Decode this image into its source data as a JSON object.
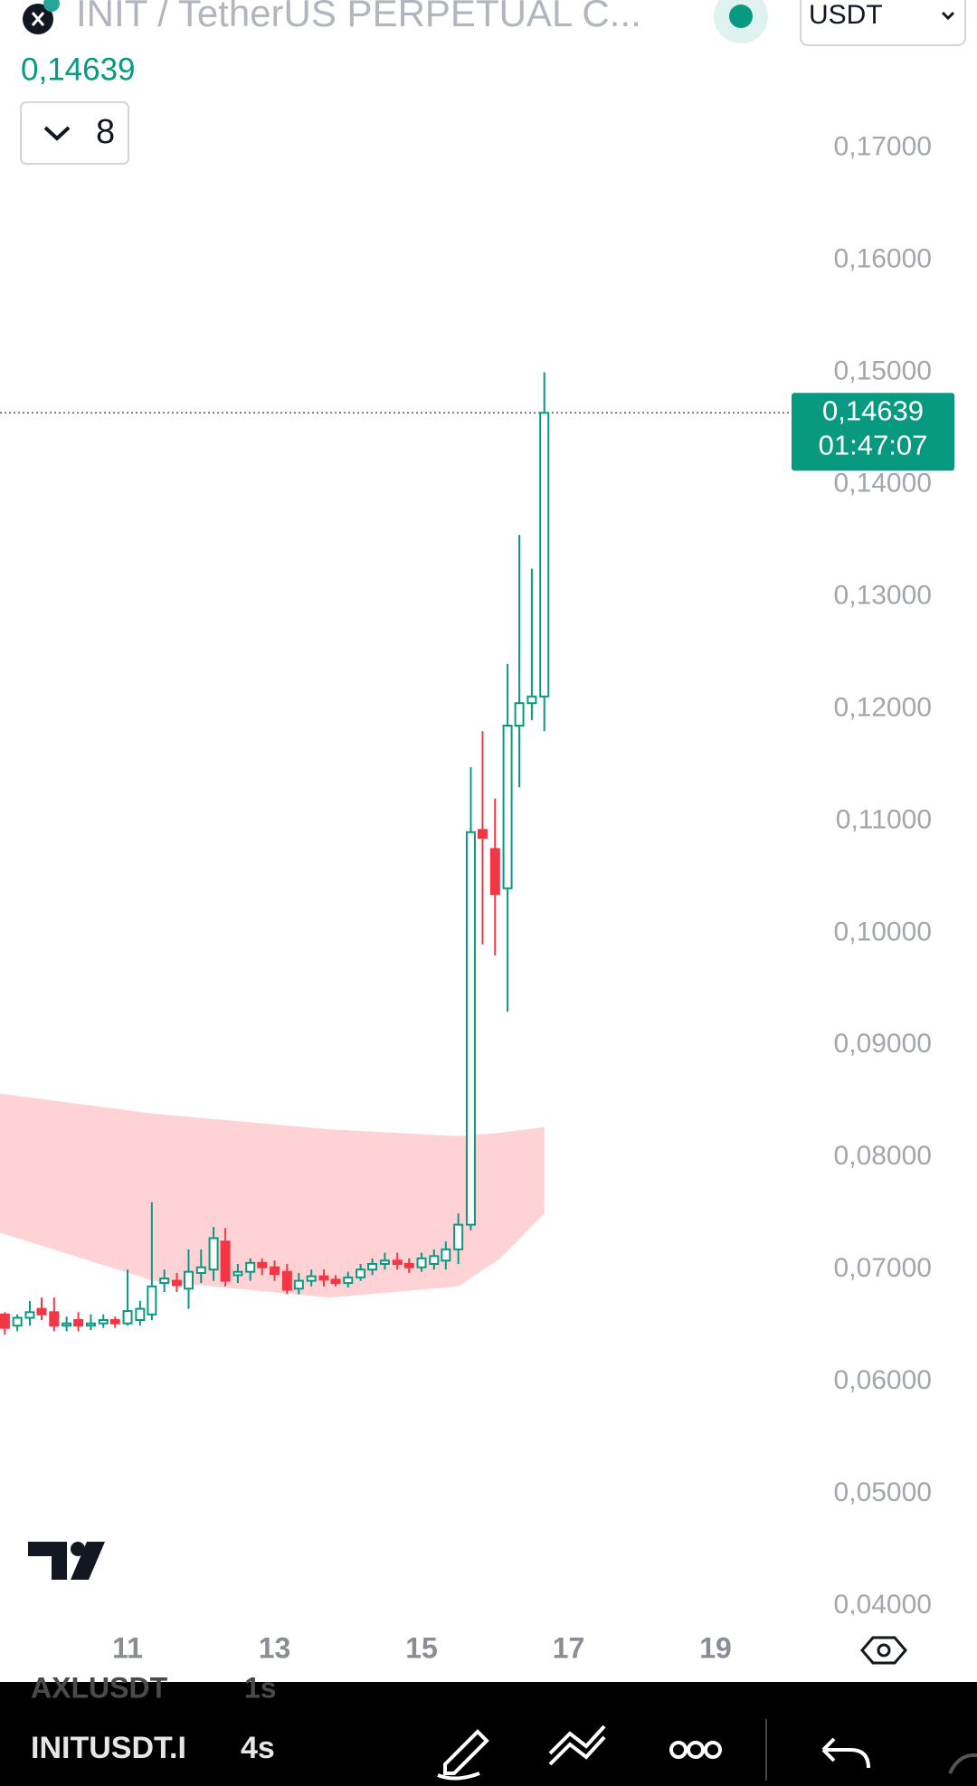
{
  "header": {
    "symbol": "INIT / TetherUS PERPETUAL C...",
    "currency": "USDT",
    "indicator_count": "8"
  },
  "toolbar": {
    "ghost_symbol": "AXLUSDT",
    "ghost_interval": "1s",
    "symbol": "INITUSDT.I",
    "interval": "4s"
  },
  "chart_data": {
    "type": "candlestick",
    "up_color": "#089981",
    "down_color": "#f23645",
    "grid": false,
    "x": [
      9.33,
      9.5,
      9.67,
      9.83,
      10,
      10.17,
      10.33,
      10.5,
      10.67,
      10.83,
      11,
      11.17,
      11.33,
      11.5,
      11.67,
      11.83,
      12,
      12.17,
      12.33,
      12.5,
      12.67,
      12.83,
      13,
      13.17,
      13.33,
      13.5,
      13.67,
      13.83,
      14,
      14.17,
      14.33,
      14.5,
      14.67,
      14.83,
      15,
      15.17,
      15.33,
      15.5,
      15.67,
      15.83,
      16,
      16.17,
      16.33,
      16.5,
      16.67
    ],
    "open": [
      0.066,
      0.065,
      0.0657,
      0.0665,
      0.0662,
      0.065,
      0.0655,
      0.065,
      0.0652,
      0.0655,
      0.0652,
      0.0655,
      0.066,
      0.0688,
      0.069,
      0.0683,
      0.0697,
      0.07,
      0.0725,
      0.0695,
      0.0698,
      0.0706,
      0.0702,
      0.0698,
      0.0683,
      0.069,
      0.0694,
      0.0691,
      0.0688,
      0.0693,
      0.07,
      0.0705,
      0.0708,
      0.0705,
      0.0702,
      0.0705,
      0.0708,
      0.0718,
      0.074,
      0.1092,
      0.1075,
      0.104,
      0.1185,
      0.1205,
      0.1211
    ],
    "high": [
      0.0662,
      0.066,
      0.0672,
      0.0675,
      0.0675,
      0.0658,
      0.0662,
      0.066,
      0.066,
      0.0658,
      0.07,
      0.0672,
      0.076,
      0.07,
      0.0697,
      0.0718,
      0.0718,
      0.0738,
      0.0737,
      0.0705,
      0.071,
      0.071,
      0.0708,
      0.0705,
      0.0697,
      0.07,
      0.07,
      0.0695,
      0.0698,
      0.0705,
      0.071,
      0.0715,
      0.0715,
      0.071,
      0.0715,
      0.0718,
      0.0725,
      0.075,
      0.1148,
      0.118,
      0.112,
      0.124,
      0.1355,
      0.1325,
      0.15
    ],
    "low": [
      0.0642,
      0.0645,
      0.065,
      0.0655,
      0.0645,
      0.0645,
      0.0645,
      0.0646,
      0.0648,
      0.0648,
      0.065,
      0.065,
      0.0655,
      0.068,
      0.068,
      0.0665,
      0.0688,
      0.069,
      0.0685,
      0.0688,
      0.069,
      0.0695,
      0.069,
      0.0678,
      0.0678,
      0.0685,
      0.0685,
      0.0685,
      0.0684,
      0.069,
      0.0695,
      0.07,
      0.07,
      0.0697,
      0.0698,
      0.07,
      0.07,
      0.0705,
      0.0735,
      0.099,
      0.098,
      0.093,
      0.113,
      0.119,
      0.118
    ],
    "close": [
      0.0648,
      0.0657,
      0.0662,
      0.066,
      0.065,
      0.0652,
      0.065,
      0.0652,
      0.0655,
      0.0652,
      0.0663,
      0.0665,
      0.0685,
      0.0692,
      0.0686,
      0.0698,
      0.0702,
      0.0728,
      0.069,
      0.0698,
      0.0706,
      0.0702,
      0.0696,
      0.0682,
      0.069,
      0.0694,
      0.0691,
      0.0688,
      0.0693,
      0.07,
      0.0705,
      0.0708,
      0.0705,
      0.0702,
      0.071,
      0.0712,
      0.0718,
      0.074,
      0.109,
      0.1085,
      0.1035,
      0.1185,
      0.1205,
      0.1211,
      0.14639
    ],
    "band": {
      "color": "#ffcdd2",
      "x": [
        9.26,
        11.35,
        13.75,
        15.5,
        16.07,
        16.67
      ],
      "upper": [
        0.0857,
        0.0839,
        0.0825,
        0.0819,
        0.0822,
        0.0827
      ],
      "lower": [
        0.0733,
        0.069,
        0.0675,
        0.0685,
        0.071,
        0.075
      ]
    },
    "last_price": {
      "value": 0.14639,
      "label": "0,14639",
      "countdown": "01:47:07",
      "color": "#089981"
    },
    "xlim": [
      9.264,
      19.96
    ],
    "xticks": [
      11,
      13,
      15,
      17,
      19
    ],
    "ylim": [
      0.0392,
      0.1832
    ],
    "yticks": [
      {
        "value": 0.17,
        "label": "0,17000"
      },
      {
        "value": 0.16,
        "label": "0,16000"
      },
      {
        "value": 0.15,
        "label": "0,15000"
      },
      {
        "value": 0.14,
        "label": "0,14000"
      },
      {
        "value": 0.13,
        "label": "0,13000"
      },
      {
        "value": 0.12,
        "label": "0,12000"
      },
      {
        "value": 0.11,
        "label": "0,11000"
      },
      {
        "value": 0.1,
        "label": "0,10000"
      },
      {
        "value": 0.09,
        "label": "0,09000"
      },
      {
        "value": 0.08,
        "label": "0,08000"
      },
      {
        "value": 0.07,
        "label": "0,07000"
      },
      {
        "value": 0.06,
        "label": "0,06000"
      },
      {
        "value": 0.05,
        "label": "0,05000"
      },
      {
        "value": 0.04,
        "label": "0,04000"
      }
    ]
  }
}
